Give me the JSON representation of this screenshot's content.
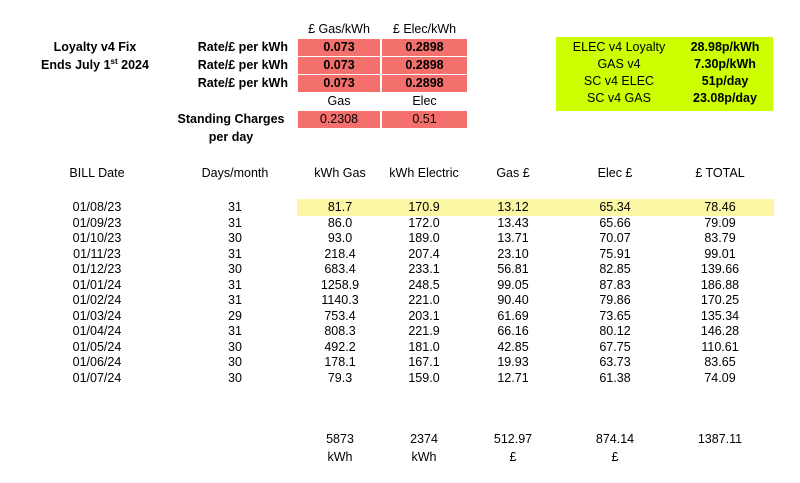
{
  "tariff": {
    "title": "Loyalty v4 Fix",
    "ends_prefix": "Ends July 1",
    "ends_sup": "st",
    "ends_suffix": " 2024",
    "col_gas_header": "£ Gas/kWh",
    "col_elec_header": "£ Elec/kWh",
    "rate_rows": [
      {
        "label": "Rate/£ per kWh",
        "gas": "0.073",
        "elec": "0.2898"
      },
      {
        "label": "Rate/£ per kWh",
        "gas": "0.073",
        "elec": "0.2898"
      },
      {
        "label": "Rate/£ per kWh",
        "gas": "0.073",
        "elec": "0.2898"
      }
    ],
    "sub_gas_label": "Gas",
    "sub_elec_label": "Elec",
    "standing_label_1": "Standing Charges",
    "standing_label_2": "per day",
    "standing_gas": "0.2308",
    "standing_elec": "0.51"
  },
  "summary_box": {
    "rows": [
      {
        "label": "ELEC v4 Loyalty",
        "value": "28.98p/kWh"
      },
      {
        "label": "GAS v4",
        "value": "7.30p/kWh"
      },
      {
        "label": "SC v4 ELEC",
        "value": "51p/day"
      },
      {
        "label": "SC v4 GAS",
        "value": "23.08p/day"
      }
    ]
  },
  "bills": {
    "headers": [
      "BILL Date",
      "Days/month",
      "kWh Gas",
      "kWh Electric",
      "Gas £",
      "Elec £",
      "£ TOTAL"
    ],
    "rows": [
      [
        "01/08/23",
        "31",
        "81.7",
        "170.9",
        "13.12",
        "65.34",
        "78.46"
      ],
      [
        "01/09/23",
        "31",
        "86.0",
        "172.0",
        "13.43",
        "65.66",
        "79.09"
      ],
      [
        "01/10/23",
        "30",
        "93.0",
        "189.0",
        "13.71",
        "70.07",
        "83.79"
      ],
      [
        "01/11/23",
        "31",
        "218.4",
        "207.4",
        "23.10",
        "75.91",
        "99.01"
      ],
      [
        "01/12/23",
        "30",
        "683.4",
        "233.1",
        "56.81",
        "82.85",
        "139.66"
      ],
      [
        "01/01/24",
        "31",
        "1258.9",
        "248.5",
        "99.05",
        "87.83",
        "186.88"
      ],
      [
        "01/02/24",
        "31",
        "1140.3",
        "221.0",
        "90.40",
        "79.86",
        "170.25"
      ],
      [
        "01/03/24",
        "29",
        "753.4",
        "203.1",
        "61.69",
        "73.65",
        "135.34"
      ],
      [
        "01/04/24",
        "31",
        "808.3",
        "221.9",
        "66.16",
        "80.12",
        "146.28"
      ],
      [
        "01/05/24",
        "30",
        "492.2",
        "181.0",
        "42.85",
        "67.75",
        "110.61"
      ],
      [
        "01/06/24",
        "30",
        "178.1",
        "167.1",
        "19.93",
        "63.73",
        "83.65"
      ],
      [
        "01/07/24",
        "30",
        "79.3",
        "159.0",
        "12.71",
        "61.38",
        "74.09"
      ]
    ],
    "totals": [
      "5873",
      "2374",
      "512.97",
      "874.14",
      "1387.11"
    ],
    "total_units": [
      "kWh",
      "kWh",
      "£",
      "£"
    ],
    "highlight_color": "#fbf7a4"
  },
  "colors": {
    "rate_cell": "#f4706d",
    "summary_box": "#ccff00"
  }
}
